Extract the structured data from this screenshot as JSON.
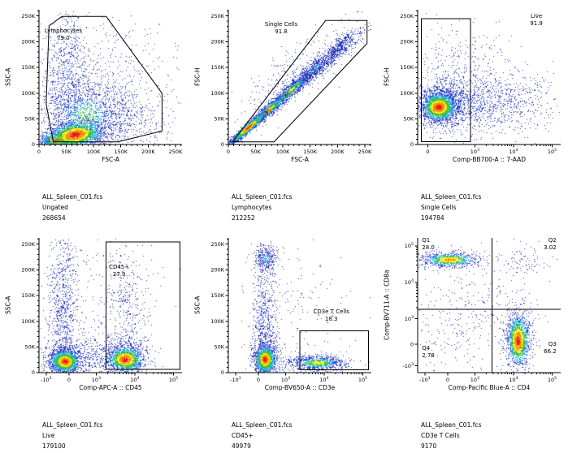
{
  "app": {
    "background": "#ffffff",
    "axis_color": "#000000"
  },
  "palette": {
    "density": [
      "#e8211c",
      "#ff9000",
      "#ffe60a",
      "#3fc53f",
      "#27b7d8",
      "#2f55dd",
      "#2433b8"
    ],
    "thresholds": [
      0.4,
      0.75,
      1.05,
      1.45,
      1.9,
      2.4
    ]
  },
  "chart_data": {
    "type": "scatter",
    "subtype": "flow-cytometry-pseudocolor-density",
    "description": "FlowJo-style gating hierarchy, 2 rows x 3 columns of density dot plots",
    "coords_note": "populations/gates/annotations given as fractions of plot area (0-1, y up)",
    "plots": [
      {
        "id": "ungated-ssc-vs-fsc",
        "xlabel": "FSC-A",
        "ylabel": "SSC-A",
        "x_scale": "linear",
        "y_scale": "linear",
        "xticks": [
          [
            0.0,
            "0"
          ],
          [
            0.191,
            "50K"
          ],
          [
            0.381,
            "100K"
          ],
          [
            0.572,
            "150K"
          ],
          [
            0.763,
            "200K"
          ],
          [
            0.954,
            "250K"
          ]
        ],
        "yticks": [
          [
            0.0,
            "0"
          ],
          [
            0.191,
            "50K"
          ],
          [
            0.381,
            "100K"
          ],
          [
            0.572,
            "150K"
          ],
          [
            0.763,
            "200K"
          ],
          [
            0.954,
            "250K"
          ]
        ],
        "gates": [
          {
            "shape": "polygon",
            "points": [
              [
                0.1,
                0.02
              ],
              [
                0.05,
                0.3
              ],
              [
                0.07,
                0.88
              ],
              [
                0.16,
                0.95
              ],
              [
                0.47,
                0.95
              ],
              [
                0.86,
                0.38
              ],
              [
                0.86,
                0.1
              ],
              [
                0.55,
                0.02
              ]
            ]
          }
        ],
        "annotations": [
          {
            "x": 0.17,
            "y": 0.83,
            "anchor": "middle",
            "lines": [
              "Lymphocytes",
              "79.0"
            ]
          }
        ],
        "populations": [
          {
            "cx": 0.13,
            "cy": 0.035,
            "sx": 0.055,
            "sy": 0.022,
            "n": 1500,
            "heat": 0
          },
          {
            "cx": 0.25,
            "cy": 0.075,
            "sx": 0.09,
            "sy": 0.045,
            "rot": 10,
            "n": 2200,
            "heat": 0
          },
          {
            "cx": 0.33,
            "cy": 0.22,
            "sx": 0.15,
            "sy": 0.14,
            "n": 1500,
            "heat": 3
          },
          {
            "cx": 0.2,
            "cy": 0.55,
            "sx": 0.08,
            "sy": 0.25,
            "n": 700,
            "heat": 5
          },
          {
            "cx": 0.55,
            "cy": 0.18,
            "sx": 0.18,
            "sy": 0.12,
            "n": 500,
            "heat": 5
          },
          {
            "cx": 0.45,
            "cy": 0.55,
            "sx": 0.27,
            "sy": 0.26,
            "n": 400,
            "heat": 6
          }
        ],
        "caption": {
          "file": "ALL_Spleen_C01.fcs",
          "population": "Ungated",
          "count": "268654"
        },
        "seed": 11
      },
      {
        "id": "lymphocytes-fsch-vs-fsca",
        "xlabel": "FSC-A",
        "ylabel": "FSC-H",
        "x_scale": "linear",
        "y_scale": "linear",
        "xticks": [
          [
            0.0,
            "0"
          ],
          [
            0.191,
            "50K"
          ],
          [
            0.381,
            "100K"
          ],
          [
            0.572,
            "150K"
          ],
          [
            0.763,
            "200K"
          ],
          [
            0.954,
            "250K"
          ]
        ],
        "yticks": [
          [
            0.0,
            "0"
          ],
          [
            0.191,
            "50K"
          ],
          [
            0.381,
            "100K"
          ],
          [
            0.572,
            "150K"
          ],
          [
            0.763,
            "200K"
          ],
          [
            0.954,
            "250K"
          ]
        ],
        "gates": [
          {
            "shape": "polygon",
            "points": [
              [
                0.03,
                0.02
              ],
              [
                0.68,
                0.92
              ],
              [
                0.97,
                0.92
              ],
              [
                0.97,
                0.75
              ],
              [
                0.32,
                0.02
              ]
            ]
          }
        ],
        "annotations": [
          {
            "x": 0.37,
            "y": 0.88,
            "anchor": "middle",
            "lines": [
              "Single Cells",
              "91.8"
            ]
          }
        ],
        "populations": [
          {
            "cx": 0.08,
            "cy": 0.07,
            "sx": 0.045,
            "sy": 0.01,
            "rot": 42,
            "n": 900,
            "heat": 0
          },
          {
            "cx": 0.14,
            "cy": 0.13,
            "sx": 0.07,
            "sy": 0.012,
            "rot": 42,
            "n": 1600,
            "heat": 0
          },
          {
            "cx": 0.27,
            "cy": 0.25,
            "sx": 0.09,
            "sy": 0.016,
            "rot": 42,
            "n": 1300,
            "heat": 1
          },
          {
            "cx": 0.43,
            "cy": 0.4,
            "sx": 0.11,
            "sy": 0.022,
            "rot": 42,
            "n": 1000,
            "heat": 2
          },
          {
            "cx": 0.6,
            "cy": 0.56,
            "sx": 0.12,
            "sy": 0.027,
            "rot": 42,
            "n": 750,
            "heat": 4
          },
          {
            "cx": 0.79,
            "cy": 0.735,
            "sx": 0.1,
            "sy": 0.03,
            "rot": 42,
            "n": 450,
            "heat": 5
          },
          {
            "cx": 0.45,
            "cy": 0.52,
            "sx": 0.26,
            "sy": 0.09,
            "rot": 40,
            "n": 300,
            "heat": 6
          }
        ],
        "caption": {
          "file": "ALL_Spleen_C01.fcs",
          "population": "Lymphocytes",
          "count": "212252"
        },
        "seed": 22
      },
      {
        "id": "single-cells-fsch-vs-7aad",
        "xlabel": "Comp-BB700-A :: 7-AAD",
        "ylabel": "FSC-H",
        "x_scale": "log",
        "y_scale": "linear",
        "xticks": [
          [
            0.07,
            "0"
          ],
          [
            0.4,
            "10^3"
          ],
          [
            0.67,
            "10^4"
          ],
          [
            0.94,
            "10^5"
          ]
        ],
        "yticks": [
          [
            0.0,
            "0"
          ],
          [
            0.191,
            "50K"
          ],
          [
            0.381,
            "100K"
          ],
          [
            0.572,
            "150K"
          ],
          [
            0.763,
            "200K"
          ],
          [
            0.954,
            "250K"
          ]
        ],
        "gates": [
          {
            "shape": "rect",
            "x1": 0.025,
            "y1": 0.02,
            "x2": 0.37,
            "y2": 0.935
          }
        ],
        "annotations": [
          {
            "x": 0.83,
            "y": 0.94,
            "anchor": "middle",
            "lines": [
              "Live",
              "91.9"
            ]
          }
        ],
        "populations": [
          {
            "cx": 0.145,
            "cy": 0.28,
            "sx": 0.055,
            "sy": 0.048,
            "n": 2100,
            "heat": 0
          },
          {
            "cx": 0.17,
            "cy": 0.3,
            "sx": 0.1,
            "sy": 0.085,
            "n": 1100,
            "heat": 3
          },
          {
            "cx": 0.38,
            "cy": 0.3,
            "sx": 0.22,
            "sy": 0.11,
            "n": 900,
            "heat": 5
          },
          {
            "cx": 0.3,
            "cy": 0.55,
            "sx": 0.2,
            "sy": 0.18,
            "n": 350,
            "heat": 6
          },
          {
            "cx": 0.72,
            "cy": 0.32,
            "sx": 0.16,
            "sy": 0.13,
            "n": 250,
            "heat": 6
          }
        ],
        "caption": {
          "file": "ALL_Spleen_C01.fcs",
          "population": "Single Cells",
          "count": "194784"
        },
        "seed": 33
      },
      {
        "id": "live-ssc-vs-cd45",
        "xlabel": "Comp-APC-A :: CD45",
        "ylabel": "SSC-A",
        "x_scale": "biex",
        "y_scale": "linear",
        "xticks": [
          [
            0.05,
            "-10^3"
          ],
          [
            0.21,
            "0"
          ],
          [
            0.4,
            "10^3"
          ],
          [
            0.67,
            "10^4"
          ],
          [
            0.94,
            "10^5"
          ]
        ],
        "yticks": [
          [
            0.0,
            "0"
          ],
          [
            0.191,
            "50K"
          ],
          [
            0.381,
            "100K"
          ],
          [
            0.572,
            "150K"
          ],
          [
            0.763,
            "200K"
          ],
          [
            0.954,
            "250K"
          ]
        ],
        "gates": [
          {
            "shape": "rect",
            "x1": 0.47,
            "y1": 0.025,
            "x2": 0.985,
            "y2": 0.97
          }
        ],
        "annotations": [
          {
            "x": 0.56,
            "y": 0.77,
            "anchor": "middle",
            "lines": [
              "CD45+",
              "27.9"
            ]
          }
        ],
        "populations": [
          {
            "cx": 0.18,
            "cy": 0.085,
            "sx": 0.045,
            "sy": 0.038,
            "n": 1900,
            "heat": 0
          },
          {
            "cx": 0.6,
            "cy": 0.1,
            "sx": 0.055,
            "sy": 0.042,
            "n": 1500,
            "heat": 0
          },
          {
            "cx": 0.18,
            "cy": 0.1,
            "sx": 0.08,
            "sy": 0.07,
            "n": 600,
            "heat": 3
          },
          {
            "cx": 0.6,
            "cy": 0.12,
            "sx": 0.09,
            "sy": 0.08,
            "n": 500,
            "heat": 3
          },
          {
            "cx": 0.17,
            "cy": 0.38,
            "sx": 0.05,
            "sy": 0.2,
            "n": 550,
            "heat": 5
          },
          {
            "cx": 0.17,
            "cy": 0.75,
            "sx": 0.05,
            "sy": 0.16,
            "n": 250,
            "heat": 6
          },
          {
            "cx": 0.4,
            "cy": 0.13,
            "sx": 0.1,
            "sy": 0.08,
            "n": 300,
            "heat": 5
          },
          {
            "cx": 0.61,
            "cy": 0.45,
            "sx": 0.06,
            "sy": 0.22,
            "n": 300,
            "heat": 6
          },
          {
            "cx": 0.45,
            "cy": 0.6,
            "sx": 0.22,
            "sy": 0.26,
            "n": 220,
            "heat": 6
          }
        ],
        "caption": {
          "file": "ALL_Spleen_C01.fcs",
          "population": "Live",
          "count": "179100"
        },
        "seed": 44
      },
      {
        "id": "cd45-ssc-vs-cd3e",
        "xlabel": "Comp-BV650-A :: CD3e",
        "ylabel": "SSC-A",
        "x_scale": "biex",
        "y_scale": "linear",
        "xticks": [
          [
            0.05,
            "-10^3"
          ],
          [
            0.21,
            "0"
          ],
          [
            0.4,
            "10^3"
          ],
          [
            0.67,
            "10^4"
          ],
          [
            0.94,
            "10^5"
          ]
        ],
        "yticks": [
          [
            0.0,
            "0"
          ],
          [
            0.191,
            "50K"
          ],
          [
            0.381,
            "100K"
          ],
          [
            0.572,
            "150K"
          ],
          [
            0.763,
            "200K"
          ],
          [
            0.954,
            "250K"
          ]
        ],
        "gates": [
          {
            "shape": "rect",
            "x1": 0.5,
            "y1": 0.02,
            "x2": 0.98,
            "y2": 0.31
          }
        ],
        "annotations": [
          {
            "x": 0.72,
            "y": 0.44,
            "anchor": "middle",
            "lines": [
              "CD3e T Cells",
              "18.3"
            ]
          }
        ],
        "populations": [
          {
            "cx": 0.255,
            "cy": 0.1,
            "sx": 0.032,
            "sy": 0.045,
            "n": 1700,
            "heat": 0
          },
          {
            "cx": 0.26,
            "cy": 0.13,
            "sx": 0.055,
            "sy": 0.09,
            "n": 500,
            "heat": 3
          },
          {
            "cx": 0.255,
            "cy": 0.4,
            "sx": 0.045,
            "sy": 0.2,
            "n": 550,
            "heat": 5
          },
          {
            "cx": 0.26,
            "cy": 0.85,
            "sx": 0.042,
            "sy": 0.055,
            "n": 350,
            "heat": 4
          },
          {
            "cx": 0.62,
            "cy": 0.075,
            "sx": 0.1,
            "sy": 0.028,
            "n": 900,
            "heat": 2
          },
          {
            "cx": 0.5,
            "cy": 0.45,
            "sx": 0.22,
            "sy": 0.26,
            "n": 150,
            "heat": 6
          }
        ],
        "caption": {
          "file": "ALL_Spleen_C01.fcs",
          "population": "CD45+",
          "count": "49979"
        },
        "seed": 55
      },
      {
        "id": "cd3e-cd8a-vs-cd4",
        "xlabel": "Comp-Pacific Blue-A :: CD4",
        "ylabel": "Comp-BV711-A :: CD8a",
        "x_scale": "biex",
        "y_scale": "biex",
        "xticks": [
          [
            0.05,
            "-10^3"
          ],
          [
            0.21,
            "0"
          ],
          [
            0.4,
            "10^3"
          ],
          [
            0.67,
            "10^4"
          ],
          [
            0.94,
            "10^5"
          ]
        ],
        "yticks": [
          [
            0.05,
            "-10^3"
          ],
          [
            0.21,
            "0"
          ],
          [
            0.4,
            "10^3"
          ],
          [
            0.67,
            "10^4"
          ],
          [
            0.94,
            "10^5"
          ]
        ],
        "gates": [
          {
            "shape": "quadrant",
            "cx": 0.52,
            "cy": 0.47
          }
        ],
        "annotations": [
          {
            "x": 0.03,
            "y": 0.97,
            "anchor": "start",
            "lines": [
              "Q1",
              "28.0"
            ]
          },
          {
            "x": 0.97,
            "y": 0.97,
            "anchor": "end",
            "lines": [
              "Q2",
              "3.02"
            ]
          },
          {
            "x": 0.97,
            "y": 0.2,
            "anchor": "end",
            "lines": [
              "Q3",
              "66.2"
            ]
          },
          {
            "x": 0.03,
            "y": 0.17,
            "anchor": "start",
            "lines": [
              "Q4",
              "2.78"
            ]
          }
        ],
        "populations": [
          {
            "cx": 0.22,
            "cy": 0.84,
            "sx": 0.095,
            "sy": 0.026,
            "n": 1000,
            "heat": 1
          },
          {
            "cx": 0.7,
            "cy": 0.24,
            "sx": 0.034,
            "sy": 0.085,
            "n": 1500,
            "heat": 0
          },
          {
            "cx": 0.7,
            "cy": 0.28,
            "sx": 0.06,
            "sy": 0.13,
            "n": 350,
            "heat": 4
          },
          {
            "cx": 0.45,
            "cy": 0.55,
            "sx": 0.22,
            "sy": 0.22,
            "n": 220,
            "heat": 6
          },
          {
            "cx": 0.74,
            "cy": 0.83,
            "sx": 0.09,
            "sy": 0.06,
            "n": 80,
            "heat": 6
          },
          {
            "cx": 0.22,
            "cy": 0.3,
            "sx": 0.13,
            "sy": 0.14,
            "n": 130,
            "heat": 6
          }
        ],
        "caption": {
          "file": "ALL_Spleen_C01.fcs",
          "population": "CD3e T Cells",
          "count": "9170"
        },
        "seed": 66
      }
    ]
  }
}
